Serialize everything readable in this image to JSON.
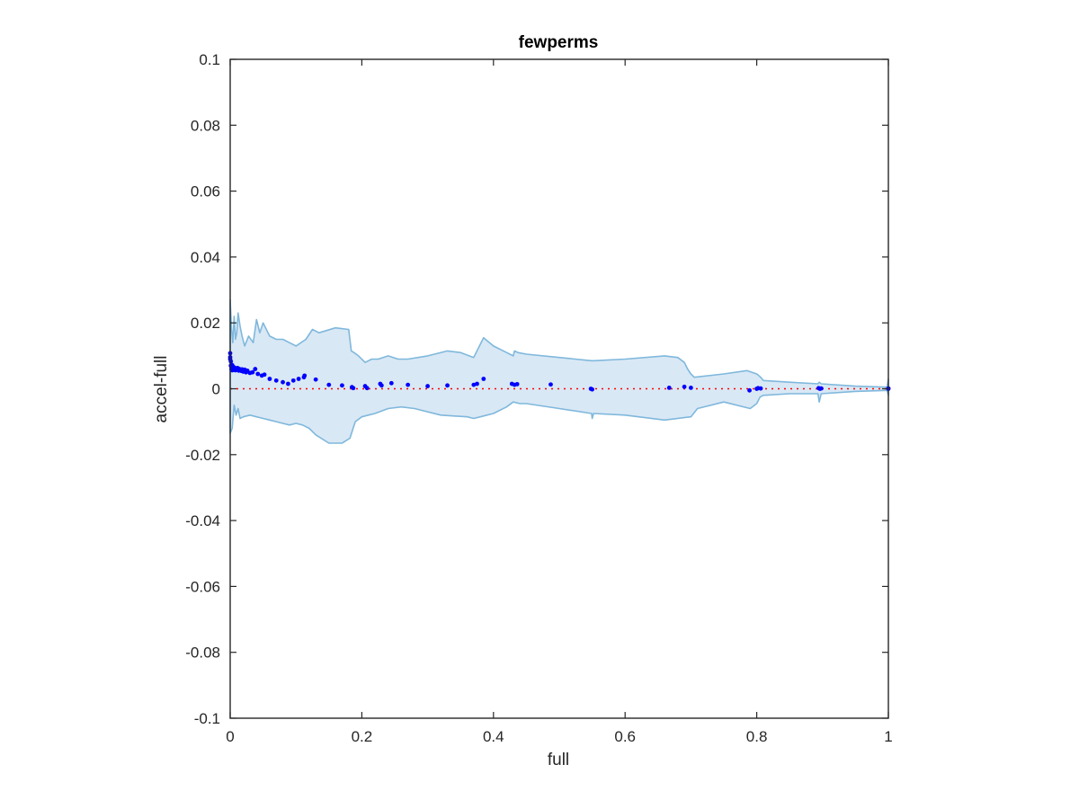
{
  "chart_data": {
    "type": "scatter",
    "title": "fewperms",
    "xlabel": "full",
    "ylabel": "accel-full",
    "xlim": [
      0,
      1
    ],
    "ylim": [
      -0.1,
      0.1
    ],
    "xticks": [
      0,
      0.2,
      0.4,
      0.6,
      0.8,
      1
    ],
    "xtick_labels": [
      "0",
      "0.2",
      "0.4",
      "0.6",
      "0.8",
      "1"
    ],
    "yticks": [
      -0.1,
      -0.08,
      -0.06,
      -0.04,
      -0.02,
      0,
      0.02,
      0.04,
      0.06,
      0.08,
      0.1
    ],
    "ytick_labels": [
      "-0.1",
      "-0.08",
      "-0.06",
      "-0.04",
      "-0.02",
      "0",
      "0.02",
      "0.04",
      "0.06",
      "0.08",
      "0.1"
    ],
    "grid": false,
    "reference_line": {
      "y": 0,
      "style": "dotted",
      "color": "#ff0000"
    },
    "band_color": "#7fb8dc",
    "band_fill": "#d9e8f5",
    "point_color": "#0000ff",
    "band_upper": [
      [
        0,
        0.027
      ],
      [
        0.002,
        0.018
      ],
      [
        0.004,
        0.014
      ],
      [
        0.006,
        0.022
      ],
      [
        0.008,
        0.015
      ],
      [
        0.01,
        0.017
      ],
      [
        0.012,
        0.023
      ],
      [
        0.015,
        0.019
      ],
      [
        0.018,
        0.016
      ],
      [
        0.022,
        0.013
      ],
      [
        0.028,
        0.016
      ],
      [
        0.035,
        0.014
      ],
      [
        0.04,
        0.021
      ],
      [
        0.045,
        0.017
      ],
      [
        0.05,
        0.02
      ],
      [
        0.06,
        0.016
      ],
      [
        0.07,
        0.015
      ],
      [
        0.08,
        0.015
      ],
      [
        0.09,
        0.014
      ],
      [
        0.1,
        0.013
      ],
      [
        0.115,
        0.015
      ],
      [
        0.125,
        0.018
      ],
      [
        0.135,
        0.017
      ],
      [
        0.16,
        0.0185
      ],
      [
        0.18,
        0.018
      ],
      [
        0.184,
        0.0115
      ],
      [
        0.188,
        0.011
      ],
      [
        0.195,
        0.01
      ],
      [
        0.205,
        0.008
      ],
      [
        0.215,
        0.009
      ],
      [
        0.225,
        0.009
      ],
      [
        0.24,
        0.01
      ],
      [
        0.255,
        0.009
      ],
      [
        0.27,
        0.009
      ],
      [
        0.3,
        0.01
      ],
      [
        0.33,
        0.0115
      ],
      [
        0.35,
        0.011
      ],
      [
        0.37,
        0.0095
      ],
      [
        0.385,
        0.0155
      ],
      [
        0.4,
        0.013
      ],
      [
        0.42,
        0.011
      ],
      [
        0.43,
        0.01
      ],
      [
        0.432,
        0.0115
      ],
      [
        0.437,
        0.011
      ],
      [
        0.45,
        0.0105
      ],
      [
        0.5,
        0.0095
      ],
      [
        0.549,
        0.0085
      ],
      [
        0.552,
        0.0085
      ],
      [
        0.6,
        0.009
      ],
      [
        0.66,
        0.01
      ],
      [
        0.68,
        0.0095
      ],
      [
        0.69,
        0.008
      ],
      [
        0.695,
        0.006
      ],
      [
        0.7,
        0.0045
      ],
      [
        0.705,
        0.0035
      ],
      [
        0.75,
        0.0045
      ],
      [
        0.785,
        0.0055
      ],
      [
        0.8,
        0.0045
      ],
      [
        0.803,
        0.004
      ],
      [
        0.806,
        0.0035
      ],
      [
        0.81,
        0.0025
      ],
      [
        0.85,
        0.002
      ],
      [
        0.893,
        0.0015
      ],
      [
        0.895,
        0.002
      ],
      [
        0.898,
        0.0015
      ],
      [
        0.95,
        0.0008
      ],
      [
        0.998,
        0.0005
      ],
      [
        1.0,
        0.003
      ]
    ],
    "band_lower": [
      [
        0,
        -0.0135
      ],
      [
        0.003,
        -0.012
      ],
      [
        0.006,
        -0.005
      ],
      [
        0.009,
        -0.008
      ],
      [
        0.012,
        -0.006
      ],
      [
        0.015,
        -0.009
      ],
      [
        0.02,
        -0.0085
      ],
      [
        0.03,
        -0.008
      ],
      [
        0.04,
        -0.0085
      ],
      [
        0.05,
        -0.009
      ],
      [
        0.06,
        -0.0095
      ],
      [
        0.07,
        -0.01
      ],
      [
        0.08,
        -0.0105
      ],
      [
        0.09,
        -0.011
      ],
      [
        0.1,
        -0.0105
      ],
      [
        0.11,
        -0.011
      ],
      [
        0.12,
        -0.012
      ],
      [
        0.13,
        -0.014
      ],
      [
        0.15,
        -0.0165
      ],
      [
        0.17,
        -0.0165
      ],
      [
        0.182,
        -0.015
      ],
      [
        0.19,
        -0.01
      ],
      [
        0.2,
        -0.0085
      ],
      [
        0.21,
        -0.008
      ],
      [
        0.22,
        -0.0075
      ],
      [
        0.24,
        -0.006
      ],
      [
        0.26,
        -0.0055
      ],
      [
        0.28,
        -0.006
      ],
      [
        0.32,
        -0.008
      ],
      [
        0.36,
        -0.0085
      ],
      [
        0.37,
        -0.009
      ],
      [
        0.38,
        -0.0085
      ],
      [
        0.4,
        -0.0075
      ],
      [
        0.42,
        -0.0055
      ],
      [
        0.43,
        -0.004
      ],
      [
        0.44,
        -0.0045
      ],
      [
        0.45,
        -0.0045
      ],
      [
        0.5,
        -0.006
      ],
      [
        0.549,
        -0.0075
      ],
      [
        0.55,
        -0.009
      ],
      [
        0.552,
        -0.0075
      ],
      [
        0.6,
        -0.008
      ],
      [
        0.66,
        -0.0095
      ],
      [
        0.7,
        -0.0085
      ],
      [
        0.71,
        -0.006
      ],
      [
        0.75,
        -0.004
      ],
      [
        0.79,
        -0.006
      ],
      [
        0.8,
        -0.0045
      ],
      [
        0.805,
        -0.0025
      ],
      [
        0.81,
        -0.002
      ],
      [
        0.85,
        -0.0015
      ],
      [
        0.893,
        -0.0015
      ],
      [
        0.895,
        -0.004
      ],
      [
        0.898,
        -0.0015
      ],
      [
        0.95,
        -0.0008
      ],
      [
        0.998,
        -0.0005
      ],
      [
        1.0,
        -0.002
      ]
    ],
    "points": {
      "x": [
        0.0,
        0.0,
        0.0,
        0.001,
        0.001,
        0.002,
        0.002,
        0.003,
        0.003,
        0.004,
        0.004,
        0.005,
        0.006,
        0.006,
        0.007,
        0.008,
        0.009,
        0.01,
        0.011,
        0.012,
        0.013,
        0.014,
        0.015,
        0.017,
        0.018,
        0.02,
        0.022,
        0.024,
        0.026,
        0.03,
        0.034,
        0.038,
        0.042,
        0.048,
        0.052,
        0.06,
        0.07,
        0.08,
        0.088,
        0.096,
        0.104,
        0.112,
        0.113,
        0.13,
        0.15,
        0.17,
        0.185,
        0.187,
        0.205,
        0.208,
        0.228,
        0.23,
        0.245,
        0.27,
        0.3,
        0.33,
        0.37,
        0.375,
        0.385,
        0.428,
        0.432,
        0.436,
        0.487,
        0.548,
        0.55,
        0.667,
        0.69,
        0.7,
        0.789,
        0.8,
        0.802,
        0.806,
        0.894,
        0.896,
        0.898,
        1.0,
        1.0
      ],
      "y": [
        0.0108,
        0.0096,
        0.009,
        0.0083,
        0.007,
        0.0064,
        0.0059,
        0.0072,
        0.0056,
        0.0062,
        0.0068,
        0.0058,
        0.0065,
        0.0057,
        0.0061,
        0.0056,
        0.006,
        0.0058,
        0.0063,
        0.0062,
        0.0055,
        0.006,
        0.0057,
        0.0054,
        0.0059,
        0.0052,
        0.0058,
        0.005,
        0.0055,
        0.0048,
        0.005,
        0.006,
        0.0045,
        0.004,
        0.0043,
        0.003,
        0.0025,
        0.002,
        0.0015,
        0.0025,
        0.003,
        0.0035,
        0.004,
        0.0028,
        0.0012,
        0.001,
        0.0005,
        0.0002,
        0.0008,
        0.0002,
        0.0015,
        0.001,
        0.0017,
        0.0012,
        0.0008,
        0.001,
        0.0012,
        0.0015,
        0.003,
        0.0015,
        0.0012,
        0.0014,
        0.0013,
        0.0,
        -0.0002,
        0.0003,
        0.0006,
        0.0003,
        -0.0005,
        0.0,
        0.0002,
        0.0001,
        0.0002,
        0.0,
        0.0001,
        0.0,
        0.0001
      ]
    }
  }
}
